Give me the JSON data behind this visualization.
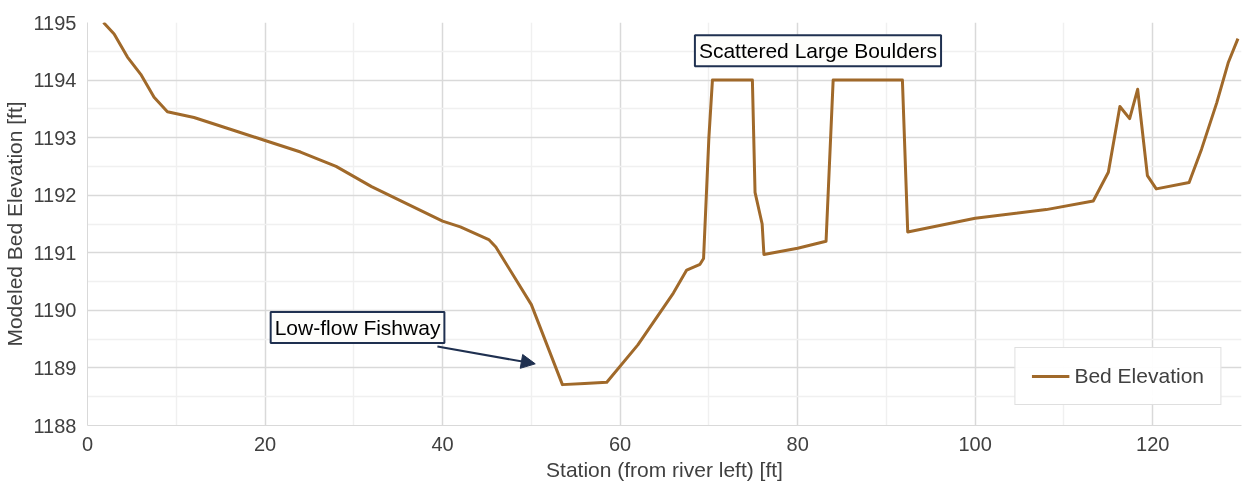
{
  "chart_data": {
    "type": "line",
    "xlabel": "Station (from river left) [ft]",
    "ylabel": "Modeled Bed Elevation [ft]",
    "xlim": [
      0,
      130
    ],
    "ylim": [
      1188,
      1195
    ],
    "xticks": [
      0,
      20,
      40,
      60,
      80,
      100,
      120
    ],
    "yticks": [
      1188,
      1189,
      1190,
      1191,
      1192,
      1193,
      1194,
      1195
    ],
    "grid": true,
    "legend": "bottom right",
    "line_style": "solid",
    "marker": "none",
    "annotations": [
      "Low-flow Fishway",
      "Scattered Large Boulders"
    ],
    "series": [
      {
        "name": "Bed Elevation",
        "color": "#a0692a",
        "x": [
          1.8,
          3,
          4.5,
          6,
          7.5,
          9,
          12,
          16,
          20,
          24,
          28,
          32,
          36,
          40,
          42,
          45.2,
          46,
          50,
          53.5,
          56,
          58.5,
          62,
          66,
          67.5,
          69,
          69.4,
          70,
          70.4,
          74.9,
          75.2,
          76,
          76.2,
          80,
          83.2,
          84,
          91.8,
          92.4,
          100,
          108,
          113.3,
          115,
          116.3,
          117.4,
          118.3,
          119.4,
          120.4,
          124.1,
          125.5,
          127.2,
          128.5,
          129.6
        ],
        "values": [
          1195,
          1194.8,
          1194.4,
          1194.1,
          1193.7,
          1193.45,
          1193.35,
          1193.15,
          1192.95,
          1192.75,
          1192.5,
          1192.15,
          1191.85,
          1191.55,
          1191.45,
          1191.23,
          1191.1,
          1190.1,
          1188.71,
          1188.73,
          1188.75,
          1189.4,
          1190.3,
          1190.7,
          1190.8,
          1190.9,
          1193,
          1194,
          1194,
          1192.05,
          1191.5,
          1190.97,
          1191.08,
          1191.2,
          1194,
          1194,
          1191.36,
          1191.6,
          1191.75,
          1191.9,
          1192.4,
          1193.54,
          1193.33,
          1193.84,
          1192.34,
          1192.11,
          1192.22,
          1192.8,
          1193.6,
          1194.3,
          1194.72
        ]
      }
    ]
  }
}
